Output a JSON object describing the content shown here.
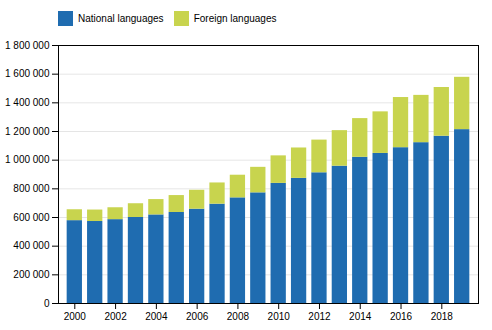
{
  "chart_data": {
    "type": "bar",
    "stacked": true,
    "x": [
      2000,
      2001,
      2002,
      2003,
      2004,
      2005,
      2006,
      2007,
      2008,
      2009,
      2010,
      2011,
      2012,
      2013,
      2014,
      2015,
      2016,
      2017,
      2018,
      2019
    ],
    "series": [
      {
        "name": "National languages",
        "color": "#1f6cb0",
        "values": [
          578000,
          572000,
          585000,
          600000,
          618000,
          635000,
          658000,
          693000,
          737000,
          772000,
          838000,
          873000,
          912000,
          958000,
          1020000,
          1047000,
          1087000,
          1122000,
          1167000,
          1213000
        ]
      },
      {
        "name": "Foreign languages",
        "color": "#c8d44e",
        "values": [
          76000,
          80000,
          83000,
          96000,
          107000,
          118000,
          132000,
          148000,
          158000,
          178000,
          192000,
          212000,
          228000,
          248000,
          270000,
          290000,
          350000,
          330000,
          340000,
          365000
        ]
      }
    ],
    "xlim": [
      1999.2,
      2019.8
    ],
    "xticks": [
      2000,
      2002,
      2004,
      2006,
      2008,
      2010,
      2012,
      2014,
      2016,
      2018
    ],
    "ylim": [
      0,
      1800000
    ],
    "yticks": [
      0,
      {
        "value": 200000,
        "label": "200 000"
      },
      {
        "value": 400000,
        "label": "400 000"
      },
      {
        "value": 600000,
        "label": "600 000"
      },
      {
        "value": 800000,
        "label": "800 000"
      },
      {
        "value": 1000000,
        "label": "1 000 000"
      },
      {
        "value": 1200000,
        "label": "1 200 000"
      },
      {
        "value": 1400000,
        "label": "1 400 000"
      },
      {
        "value": 1600000,
        "label": "1 600 000"
      },
      {
        "value": 1800000,
        "label": "1 800 000"
      }
    ],
    "grid": true,
    "legend": "upper left"
  }
}
